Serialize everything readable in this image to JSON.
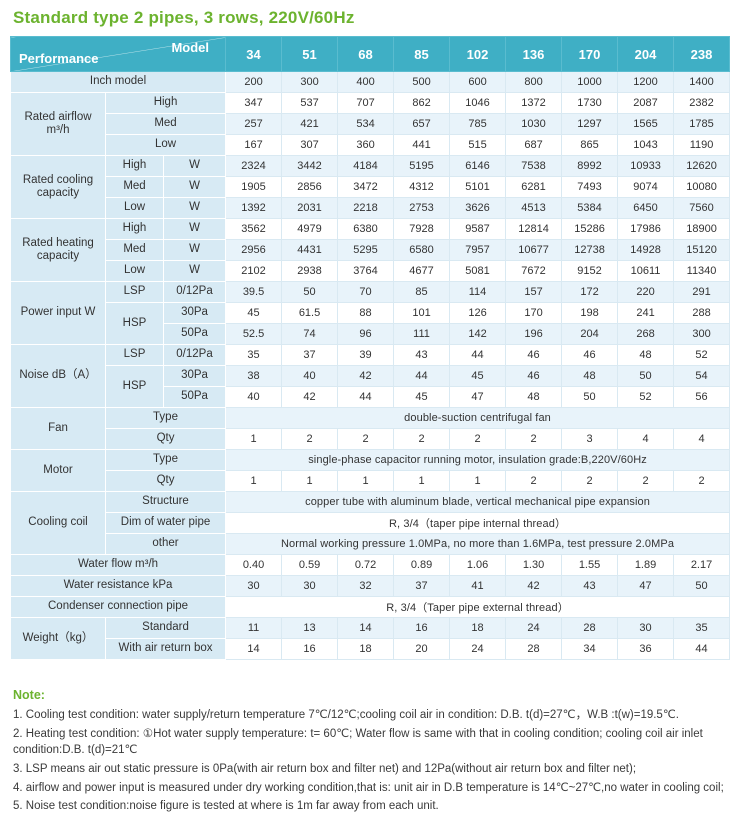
{
  "title": "Standard type 2 pipes, 3 rows, 220V/60Hz",
  "colors": {
    "title_green": "#6cb32f",
    "header_teal": "#3fafc5",
    "label_blue": "#d7eaf4",
    "stripe_blue": "#e8f3fa"
  },
  "table": {
    "header": {
      "corner_top": "Model",
      "corner_bottom": "Performance",
      "models": [
        "34",
        "51",
        "68",
        "85",
        "102",
        "136",
        "170",
        "204",
        "238"
      ]
    },
    "rows": [
      {
        "cells": [
          {
            "t": "Inch model",
            "c": 3,
            "k": "A"
          }
        ],
        "vals": [
          "200",
          "300",
          "400",
          "500",
          "600",
          "800",
          "1000",
          "1200",
          "1400"
        ]
      },
      {
        "cells": [
          {
            "t": "Rated airflow m³/h",
            "r": 3,
            "k": "A"
          },
          {
            "t": "High",
            "c": 2,
            "k": "B"
          }
        ],
        "vals": [
          "347",
          "537",
          "707",
          "862",
          "1046",
          "1372",
          "1730",
          "2087",
          "2382"
        ]
      },
      {
        "cells": [
          {
            "t": "Med",
            "c": 2,
            "k": "B"
          }
        ],
        "vals": [
          "257",
          "421",
          "534",
          "657",
          "785",
          "1030",
          "1297",
          "1565",
          "1785"
        ]
      },
      {
        "cells": [
          {
            "t": "Low",
            "c": 2,
            "k": "B"
          }
        ],
        "vals": [
          "167",
          "307",
          "360",
          "441",
          "515",
          "687",
          "865",
          "1043",
          "1190"
        ]
      },
      {
        "cells": [
          {
            "t": "Rated cooling capacity",
            "r": 3,
            "k": "A"
          },
          {
            "t": "High",
            "k": "B"
          },
          {
            "t": "W",
            "k": "C"
          }
        ],
        "vals": [
          "2324",
          "3442",
          "4184",
          "5195",
          "6146",
          "7538",
          "8992",
          "10933",
          "12620"
        ]
      },
      {
        "cells": [
          {
            "t": "Med",
            "k": "B"
          },
          {
            "t": "W",
            "k": "C"
          }
        ],
        "vals": [
          "1905",
          "2856",
          "3472",
          "4312",
          "5101",
          "6281",
          "7493",
          "9074",
          "10080"
        ]
      },
      {
        "cells": [
          {
            "t": "Low",
            "k": "B"
          },
          {
            "t": "W",
            "k": "C"
          }
        ],
        "vals": [
          "1392",
          "2031",
          "2218",
          "2753",
          "3626",
          "4513",
          "5384",
          "6450",
          "7560"
        ]
      },
      {
        "cells": [
          {
            "t": "Rated heating capacity",
            "r": 3,
            "k": "A"
          },
          {
            "t": "High",
            "k": "B"
          },
          {
            "t": "W",
            "k": "C"
          }
        ],
        "vals": [
          "3562",
          "4979",
          "6380",
          "7928",
          "9587",
          "12814",
          "15286",
          "17986",
          "18900"
        ]
      },
      {
        "cells": [
          {
            "t": "Med",
            "k": "B"
          },
          {
            "t": "W",
            "k": "C"
          }
        ],
        "vals": [
          "2956",
          "4431",
          "5295",
          "6580",
          "7957",
          "10677",
          "12738",
          "14928",
          "15120"
        ]
      },
      {
        "cells": [
          {
            "t": "Low",
            "k": "B"
          },
          {
            "t": "W",
            "k": "C"
          }
        ],
        "vals": [
          "2102",
          "2938",
          "3764",
          "4677",
          "5081",
          "7672",
          "9152",
          "10611",
          "11340"
        ]
      },
      {
        "cells": [
          {
            "t": "Power input W",
            "r": 3,
            "k": "A"
          },
          {
            "t": "LSP",
            "k": "B"
          },
          {
            "t": "0/12Pa",
            "k": "C"
          }
        ],
        "vals": [
          "39.5",
          "50",
          "70",
          "85",
          "114",
          "157",
          "172",
          "220",
          "291"
        ]
      },
      {
        "cells": [
          {
            "t": "HSP",
            "r": 2,
            "k": "B"
          },
          {
            "t": "30Pa",
            "k": "C"
          }
        ],
        "vals": [
          "45",
          "61.5",
          "88",
          "101",
          "126",
          "170",
          "198",
          "241",
          "288"
        ]
      },
      {
        "cells": [
          {
            "t": "50Pa",
            "k": "C"
          }
        ],
        "vals": [
          "52.5",
          "74",
          "96",
          "111",
          "142",
          "196",
          "204",
          "268",
          "300"
        ]
      },
      {
        "cells": [
          {
            "t": "Noise dB（A）",
            "r": 3,
            "k": "A"
          },
          {
            "t": "LSP",
            "k": "B"
          },
          {
            "t": "0/12Pa",
            "k": "C"
          }
        ],
        "vals": [
          "35",
          "37",
          "39",
          "43",
          "44",
          "46",
          "46",
          "48",
          "52"
        ]
      },
      {
        "cells": [
          {
            "t": "HSP",
            "r": 2,
            "k": "B"
          },
          {
            "t": "30Pa",
            "k": "C"
          }
        ],
        "vals": [
          "38",
          "40",
          "42",
          "44",
          "45",
          "46",
          "48",
          "50",
          "54"
        ]
      },
      {
        "cells": [
          {
            "t": "50Pa",
            "k": "C"
          }
        ],
        "vals": [
          "40",
          "42",
          "44",
          "45",
          "47",
          "48",
          "50",
          "52",
          "56"
        ]
      },
      {
        "cells": [
          {
            "t": "Fan",
            "r": 2,
            "k": "A"
          },
          {
            "t": "Type",
            "c": 2,
            "k": "B"
          },
          {
            "t": "double-suction centrifugal fan",
            "c": 9,
            "k": "s"
          }
        ]
      },
      {
        "cells": [
          {
            "t": "Qty",
            "c": 2,
            "k": "B"
          }
        ],
        "vals": [
          "1",
          "2",
          "2",
          "2",
          "2",
          "2",
          "3",
          "4",
          "4"
        ]
      },
      {
        "cells": [
          {
            "t": "Motor",
            "r": 2,
            "k": "A"
          },
          {
            "t": "Type",
            "c": 2,
            "k": "B"
          },
          {
            "t": "single-phase capacitor running motor, insulation grade:B,220V/60Hz",
            "c": 9,
            "k": "s"
          }
        ]
      },
      {
        "cells": [
          {
            "t": "Qty",
            "c": 2,
            "k": "B"
          }
        ],
        "vals": [
          "1",
          "1",
          "1",
          "1",
          "1",
          "2",
          "2",
          "2",
          "2"
        ]
      },
      {
        "cells": [
          {
            "t": "Cooling coil",
            "r": 3,
            "k": "A"
          },
          {
            "t": "Structure",
            "c": 2,
            "k": "B"
          },
          {
            "t": "copper tube with aluminum blade, vertical mechanical pipe expansion",
            "c": 9,
            "k": "s"
          }
        ]
      },
      {
        "cells": [
          {
            "t": "Dim of water pipe",
            "c": 2,
            "k": "B"
          },
          {
            "t": "R, 3/4（taper pipe internal thread）",
            "c": 9,
            "k": "s"
          }
        ]
      },
      {
        "cells": [
          {
            "t": "other",
            "c": 2,
            "k": "B"
          },
          {
            "t": "Normal working pressure 1.0MPa, no more than 1.6MPa, test pressure 2.0MPa",
            "c": 9,
            "k": "s"
          }
        ]
      },
      {
        "cells": [
          {
            "t": "Water flow m³/h",
            "c": 3,
            "k": "A"
          }
        ],
        "vals": [
          "0.40",
          "0.59",
          "0.72",
          "0.89",
          "1.06",
          "1.30",
          "1.55",
          "1.89",
          "2.17"
        ]
      },
      {
        "cells": [
          {
            "t": "Water resistance kPa",
            "c": 3,
            "k": "A"
          }
        ],
        "vals": [
          "30",
          "30",
          "32",
          "37",
          "41",
          "42",
          "43",
          "47",
          "50"
        ]
      },
      {
        "cells": [
          {
            "t": "Condenser connection pipe",
            "c": 3,
            "k": "A"
          },
          {
            "t": "R, 3/4（Taper pipe external thread）",
            "c": 9,
            "k": "s"
          }
        ]
      },
      {
        "cells": [
          {
            "t": "Weight（kg）",
            "r": 2,
            "k": "A"
          },
          {
            "t": "Standard",
            "c": 2,
            "k": "B"
          }
        ],
        "vals": [
          "11",
          "13",
          "14",
          "16",
          "18",
          "24",
          "28",
          "30",
          "35"
        ]
      },
      {
        "cells": [
          {
            "t": "With air return box",
            "c": 2,
            "k": "B"
          }
        ],
        "vals": [
          "14",
          "16",
          "18",
          "20",
          "24",
          "28",
          "34",
          "36",
          "44"
        ]
      }
    ]
  },
  "notes": {
    "heading": "Note:",
    "items": [
      "1. Cooling test condition: water supply/return temperature 7℃/12℃;cooling coil air in condition: D.B. t(d)=27℃，W.B :t(w)=19.5℃.",
      "2. Heating test condition: ①Hot water supply temperature: t= 60℃; Water flow is same with that in cooling condition; cooling coil air inlet condition:D.B. t(d)=21℃",
      "3. LSP means air out static pressure is 0Pa(with air return box and filter net) and 12Pa(without air return box and filter net);",
      "4. airflow and power input is measured under dry working condition,that is: unit air in D.B temperature is 14℃~27℃,no water in cooling coil;",
      "5. Noise test condition:noise figure is tested at where is 1m far away from each unit."
    ]
  }
}
